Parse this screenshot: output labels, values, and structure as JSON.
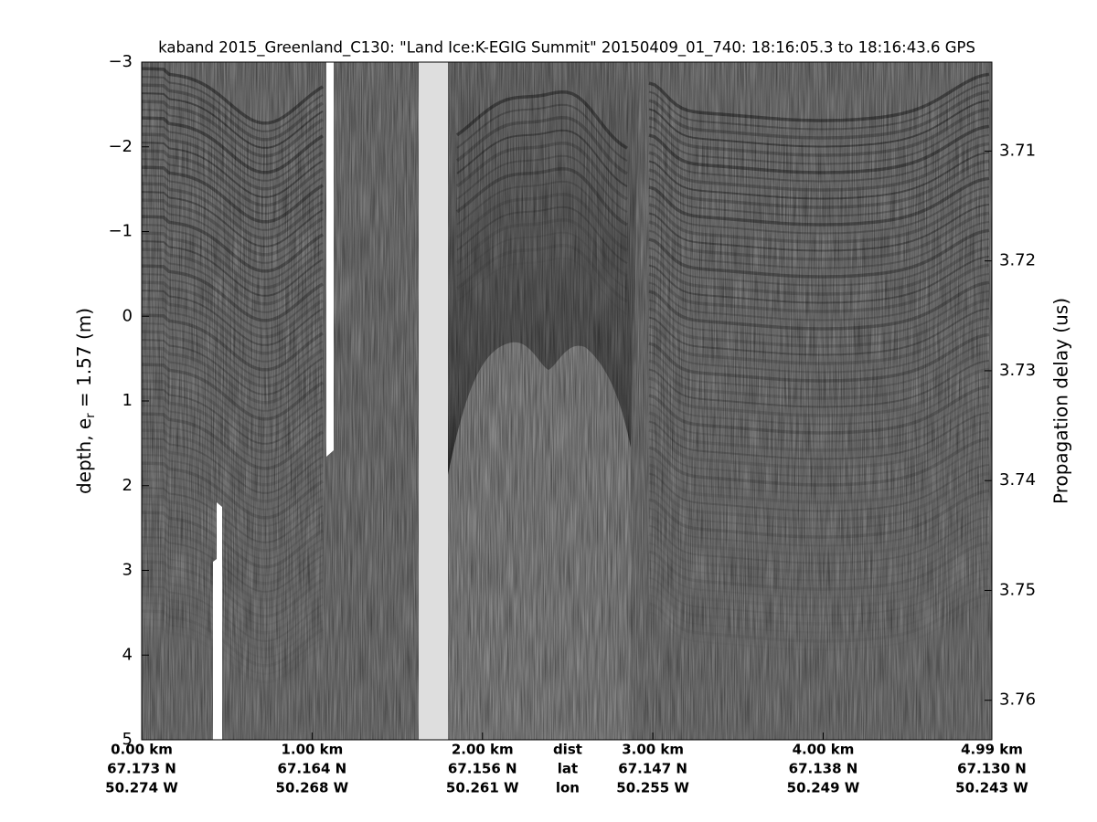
{
  "chart_data": {
    "type": "echogram",
    "title": "kaband 2015_Greenland_C130: \"Land Ice:K-EGIG Summit\"  20150409_01_740: 18:16:05.3 to 18:16:43.6 GPS",
    "ylabel_parts": [
      "depth, e",
      "r",
      " = 1.57 (m)"
    ],
    "y2label": "Propagation delay (us)",
    "ylim": [
      -3,
      5
    ],
    "yticks": [
      {
        "value": -3,
        "label": "−3"
      },
      {
        "value": -2,
        "label": "−2"
      },
      {
        "value": -1,
        "label": "−1"
      },
      0,
      1,
      2,
      3,
      4,
      5
    ],
    "y2lim": [
      3.7019,
      3.7636
    ],
    "y2ticks": [
      3.71,
      3.72,
      3.73,
      3.74,
      3.75,
      3.76
    ],
    "xlim": [
      0,
      4.99
    ],
    "xticks": [
      {
        "value": 0,
        "label": "0.00 km"
      },
      {
        "value": 1,
        "label": "1.00 km"
      },
      {
        "value": 2,
        "label": "2.00 km"
      },
      {
        "value": 3,
        "label": "3.00 km"
      },
      {
        "value": 4,
        "label": "4.00 km"
      },
      {
        "value": 4.99,
        "label": "4.99 km"
      }
    ],
    "lat_labels": [
      "67.173 N",
      "67.164 N",
      "67.156 N",
      "67.147 N",
      "67.138 N",
      "67.130 N"
    ],
    "lon_labels": [
      "50.274 W",
      "50.268 W",
      "50.261 W",
      "50.255 W",
      "50.249 W",
      "50.243 W"
    ],
    "row_labels": [
      "dist",
      "lat",
      "lon"
    ]
  }
}
